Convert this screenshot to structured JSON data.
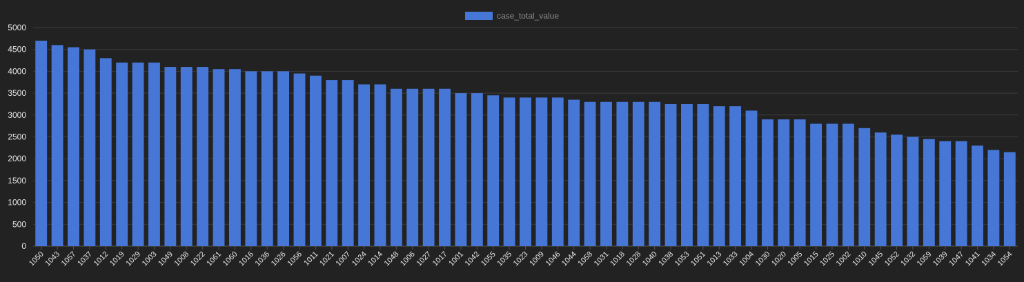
{
  "colors": {
    "background": "#222222",
    "bar": "#4677d6",
    "grid": "#3d3d3d",
    "axis": "#555555",
    "tick_text": "#e6e6e6",
    "legend_text": "#8c8c8c"
  },
  "legend": {
    "label": "case_total_value"
  },
  "chart_data": {
    "type": "bar",
    "title": "",
    "xlabel": "",
    "ylabel": "",
    "ylim": [
      0,
      5000
    ],
    "yticks": [
      0,
      500,
      1000,
      1500,
      2000,
      2500,
      3000,
      3500,
      4000,
      4500,
      5000
    ],
    "grid": true,
    "legend_position": "top-center",
    "categories": [
      "1050",
      "1043",
      "1057",
      "1037",
      "1012",
      "1019",
      "1029",
      "1003",
      "1049",
      "1008",
      "1022",
      "1061",
      "1060",
      "1016",
      "1036",
      "1026",
      "1056",
      "1011",
      "1021",
      "1007",
      "1024",
      "1014",
      "1048",
      "1006",
      "1027",
      "1017",
      "1001",
      "1042",
      "1055",
      "1035",
      "1023",
      "1009",
      "1046",
      "1044",
      "1058",
      "1031",
      "1018",
      "1028",
      "1040",
      "1038",
      "1053",
      "1051",
      "1013",
      "1033",
      "1004",
      "1030",
      "1020",
      "1005",
      "1015",
      "1025",
      "1002",
      "1010",
      "1045",
      "1052",
      "1032",
      "1059",
      "1039",
      "1047",
      "1041",
      "1034",
      "1054"
    ],
    "series": [
      {
        "name": "case_total_value",
        "values": [
          4700,
          4600,
          4550,
          4500,
          4300,
          4200,
          4200,
          4200,
          4100,
          4100,
          4100,
          4050,
          4050,
          4000,
          4000,
          4000,
          3950,
          3900,
          3800,
          3800,
          3700,
          3700,
          3600,
          3600,
          3600,
          3600,
          3500,
          3500,
          3450,
          3400,
          3400,
          3400,
          3400,
          3350,
          3300,
          3300,
          3300,
          3300,
          3300,
          3250,
          3250,
          3250,
          3200,
          3200,
          3100,
          2900,
          2900,
          2900,
          2800,
          2800,
          2800,
          2700,
          2600,
          2550,
          2500,
          2450,
          2400,
          2400,
          2300,
          2200,
          2150
        ]
      }
    ]
  }
}
